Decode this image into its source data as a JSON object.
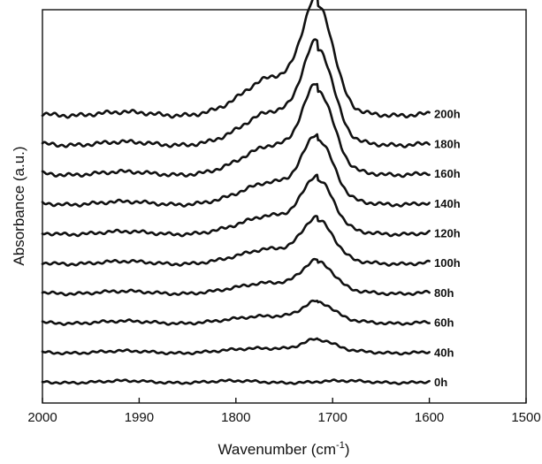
{
  "chart_data": {
    "type": "line",
    "title": "",
    "xlabel": "Wavenumber (cm",
    "xlabel_superscript": "-1",
    "xlabel_suffix": ")",
    "ylabel": "Absorbance (a.u.)",
    "xlim": [
      2000,
      1500
    ],
    "x_reversed": true,
    "x_ticks": [
      2000,
      1990,
      1800,
      1700,
      1600,
      1500
    ],
    "x_tick_labels": [
      "2000",
      "1990",
      "1800",
      "1700",
      "1600",
      "1500"
    ],
    "y_ticks_shown": false,
    "grid": false,
    "legend": "none",
    "x_start": 2000,
    "x_end": 1600,
    "peak_position": 1715,
    "series": [
      {
        "name": "0h",
        "baseline": 0.0,
        "peak": 0.0
      },
      {
        "name": "40h",
        "baseline": 0.1,
        "peak": 0.04
      },
      {
        "name": "60h",
        "baseline": 0.2,
        "peak": 0.065
      },
      {
        "name": "80h",
        "baseline": 0.3,
        "peak": 0.1
      },
      {
        "name": "100h",
        "baseline": 0.4,
        "peak": 0.14
      },
      {
        "name": "120h",
        "baseline": 0.5,
        "peak": 0.175
      },
      {
        "name": "140h",
        "baseline": 0.6,
        "peak": 0.21
      },
      {
        "name": "160h",
        "baseline": 0.7,
        "peak": 0.275
      },
      {
        "name": "180h",
        "baseline": 0.8,
        "peak": 0.315
      },
      {
        "name": "200h",
        "baseline": 0.9,
        "peak": 0.36
      }
    ]
  }
}
